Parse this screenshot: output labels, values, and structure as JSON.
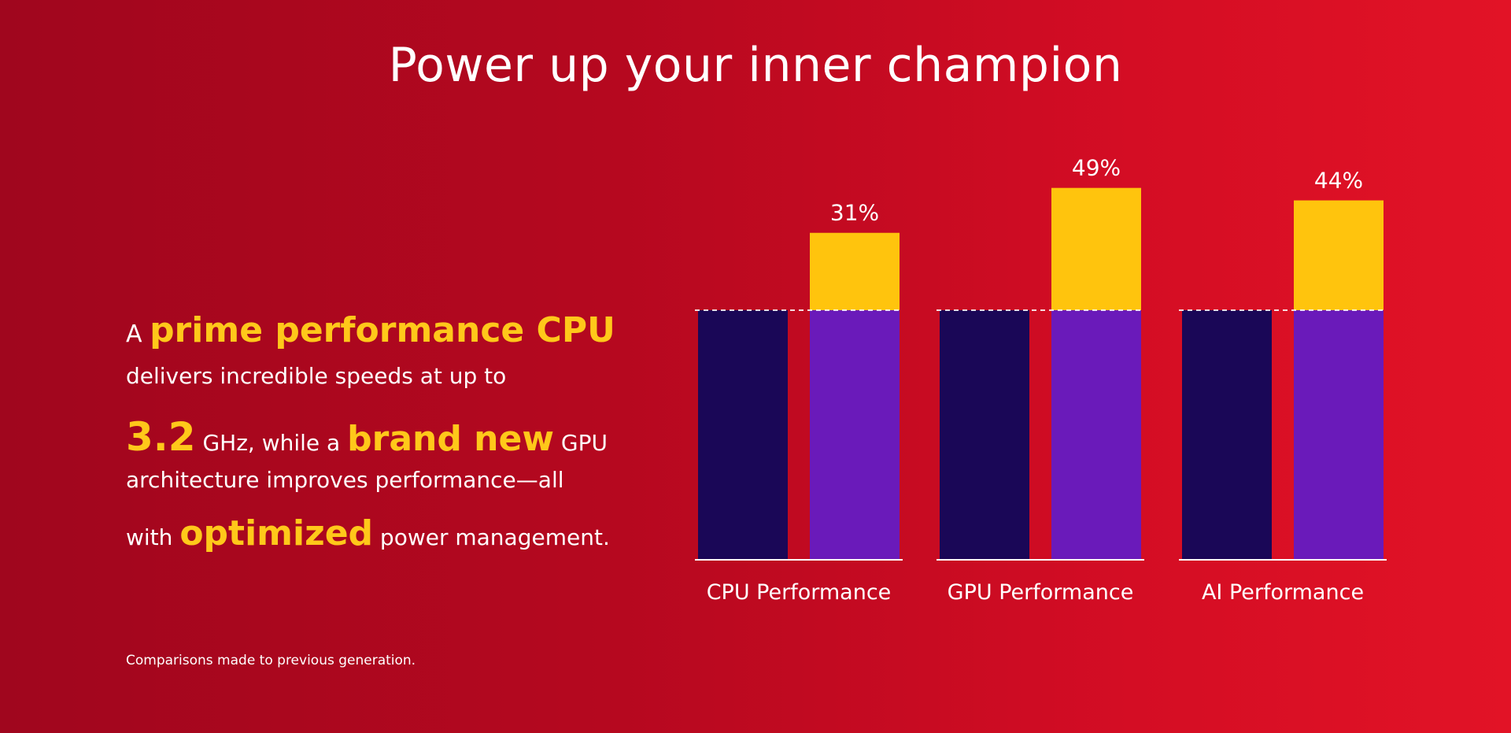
{
  "title": "Power up your inner champion",
  "copy": {
    "line1_pre": "A ",
    "line1_hl": "prime performance CPU",
    "line2": "delivers incredible speeds at up to",
    "line3_num": "3.2",
    "line3_mid": " GHz, while a ",
    "line3_hl": "brand new",
    "line3_post": " GPU",
    "line4": "architecture improves performance—all",
    "line5_pre": "with ",
    "line5_hl": "optimized",
    "line5_post": " power management."
  },
  "footnote": "Comparisons made to previous generation.",
  "colors": {
    "previous_bar": "#1a0757",
    "current_bar": "#6a1aba",
    "increase_bar": "#ffc40d",
    "baseline": "#ffffff",
    "highlight_text": "#ffc81a"
  },
  "chart_data": {
    "type": "bar",
    "stacked_increase": true,
    "categories": [
      "CPU Performance",
      "GPU Performance",
      "AI Performance"
    ],
    "baseline": 100,
    "increase_percent": [
      31,
      49,
      44
    ],
    "data_labels": [
      "31%",
      "49%",
      "44%"
    ],
    "ylim": [
      0,
      160
    ],
    "grid": false,
    "legend": "none"
  }
}
